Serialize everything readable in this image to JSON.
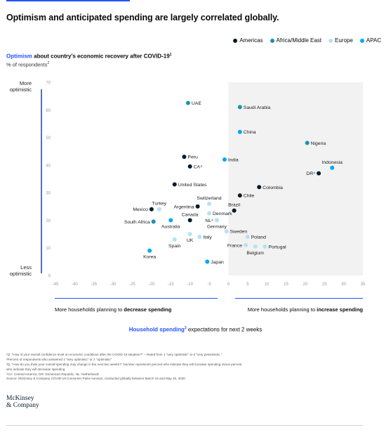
{
  "title": "Optimism and anticipated spending are largely correlated globally.",
  "legend": [
    {
      "label": "Americas",
      "color": "#051c2c"
    },
    {
      "label": "Africa/Middle East",
      "color": "#1f8fb3"
    },
    {
      "label": "Europe",
      "color": "#b3e3f0"
    },
    {
      "label": "APAC",
      "color": "#00a9f4"
    }
  ],
  "y_metric": {
    "highlight": "Optimism",
    "rest": " about country's economic recovery after COVID-19",
    "sup": "1"
  },
  "y_unit": {
    "text": "% of respondents",
    "sup": "2"
  },
  "y_hint_top": [
    "More",
    "optimistic"
  ],
  "y_hint_bottom": [
    "Less",
    "optimistic"
  ],
  "x_hint_left": {
    "prefix": "More households planning to ",
    "bold": "decrease spending"
  },
  "x_hint_right": {
    "prefix": "More households planning to ",
    "bold": "increase spending"
  },
  "x_metric": {
    "highlight": "Household spending",
    "sup": "3",
    "rest": " expectations for next 2 weeks"
  },
  "footnotes": [
    "¹Q: \"How is your overall confidence level on economic conditions after the COVID-19 situation?\" – Rated from 1 \"very optimistic\" to 6 \"very pessimistic.\"",
    "²Percent of respondents who answered 1 \"very optimistic\" or 2 \"optimistic\"",
    "³Q: \"How do you think your overall spending may change in the next two weeks?\" Number represents percent who indicate they will increase spending minus percent",
    "  who indicate they will decrease spending.",
    "⁴CA: Central America, DR: Dominican Republic, NL: Netherlands",
    "Source: McKinsey & Company COVID-19 Consumer Pulse surveys, conducted globally between March 15 and May 25, 2020"
  ],
  "brand": [
    "McKinsey",
    "& Company"
  ],
  "chart_data": {
    "type": "scatter",
    "xlabel": "Household spending expectations for next 2 weeks",
    "ylabel": "Optimism about country's economic recovery after COVID-19, % of respondents",
    "xlim": [
      -45,
      35
    ],
    "ylim": [
      0,
      70
    ],
    "x_ticks": [
      -45,
      -40,
      -35,
      -30,
      -25,
      -20,
      -15,
      -10,
      -5,
      0,
      5,
      10,
      15,
      20,
      25,
      30,
      35
    ],
    "y_ticks": [
      0,
      10,
      20,
      30,
      40,
      50,
      60,
      70
    ],
    "shaded_region": {
      "x_from": 0,
      "x_to": 35,
      "color": "#f2f2f2"
    },
    "points": [
      {
        "label": "UAE",
        "x": -10.5,
        "y": 62.5,
        "region": "Africa/Middle East",
        "anchor": "right"
      },
      {
        "label": "Saudi Arabia",
        "x": 3,
        "y": 61,
        "region": "Africa/Middle East",
        "anchor": "right"
      },
      {
        "label": "China",
        "x": 3,
        "y": 52,
        "region": "APAC",
        "anchor": "right"
      },
      {
        "label": "Nigeria",
        "x": 20.5,
        "y": 48,
        "region": "Africa/Middle East",
        "anchor": "right"
      },
      {
        "label": "Peru",
        "x": -11.5,
        "y": 43,
        "region": "Americas",
        "anchor": "right"
      },
      {
        "label": "India",
        "x": -1,
        "y": 42,
        "region": "APAC",
        "anchor": "right"
      },
      {
        "label": "CA⁴",
        "x": -10,
        "y": 39.5,
        "region": "Americas",
        "anchor": "right"
      },
      {
        "label": "Indonesia",
        "x": 27,
        "y": 39,
        "region": "APAC",
        "anchor": "above"
      },
      {
        "label": "DR⁴",
        "x": 23.5,
        "y": 37,
        "region": "Americas",
        "anchor": "left"
      },
      {
        "label": "United States",
        "x": -14,
        "y": 33,
        "region": "Americas",
        "anchor": "right"
      },
      {
        "label": "Colombia",
        "x": 8,
        "y": 32,
        "region": "Americas",
        "anchor": "right"
      },
      {
        "label": "Chile",
        "x": 3,
        "y": 29,
        "region": "Americas",
        "anchor": "right"
      },
      {
        "label": "Switzerland",
        "x": -5,
        "y": 26,
        "region": "Europe",
        "anchor": "above"
      },
      {
        "label": "Argentina",
        "x": -8,
        "y": 25,
        "region": "Americas",
        "anchor": "left"
      },
      {
        "label": "Brazil",
        "x": 1.5,
        "y": 23.5,
        "region": "Americas",
        "anchor": "above"
      },
      {
        "label": "Turkey",
        "x": -18,
        "y": 24,
        "region": "Europe",
        "anchor": "above"
      },
      {
        "label": "Mexico",
        "x": -20,
        "y": 24,
        "region": "Americas",
        "anchor": "left"
      },
      {
        "label": "Denmark",
        "x": -5,
        "y": 22.5,
        "region": "Europe",
        "anchor": "right"
      },
      {
        "label": "Canada",
        "x": -10,
        "y": 20,
        "region": "Americas",
        "anchor": "above"
      },
      {
        "label": "NL⁴",
        "x": -3,
        "y": 20,
        "region": "Europe",
        "anchor": "left"
      },
      {
        "label": "Germany",
        "x": -3,
        "y": 20,
        "region": "Europe",
        "anchor": "below"
      },
      {
        "label": "South Africa",
        "x": -19.5,
        "y": 19.5,
        "region": "Africa/Middle East",
        "anchor": "left"
      },
      {
        "label": "Australia",
        "x": -15,
        "y": 20,
        "region": "APAC",
        "anchor": "below"
      },
      {
        "label": "Sweden",
        "x": -0.5,
        "y": 16,
        "region": "Europe",
        "anchor": "right"
      },
      {
        "label": "Italy",
        "x": -7.5,
        "y": 14,
        "region": "Europe",
        "anchor": "right"
      },
      {
        "label": "UK",
        "x": -10,
        "y": 15,
        "region": "Europe",
        "anchor": "below"
      },
      {
        "label": "Poland",
        "x": 5,
        "y": 14,
        "region": "Europe",
        "anchor": "right"
      },
      {
        "label": "Spain",
        "x": -14,
        "y": 13,
        "region": "Europe",
        "anchor": "below"
      },
      {
        "label": "France",
        "x": 4.5,
        "y": 11,
        "region": "Europe",
        "anchor": "left"
      },
      {
        "label": "Portugal",
        "x": 9.5,
        "y": 10.5,
        "region": "Europe",
        "anchor": "right"
      },
      {
        "label": "Belgium",
        "x": 7,
        "y": 10.5,
        "region": "Europe",
        "anchor": "below"
      },
      {
        "label": "Korea",
        "x": -20.5,
        "y": 9,
        "region": "APAC",
        "anchor": "below"
      },
      {
        "label": "Japan",
        "x": -5.5,
        "y": 5,
        "region": "APAC",
        "anchor": "right"
      }
    ]
  }
}
